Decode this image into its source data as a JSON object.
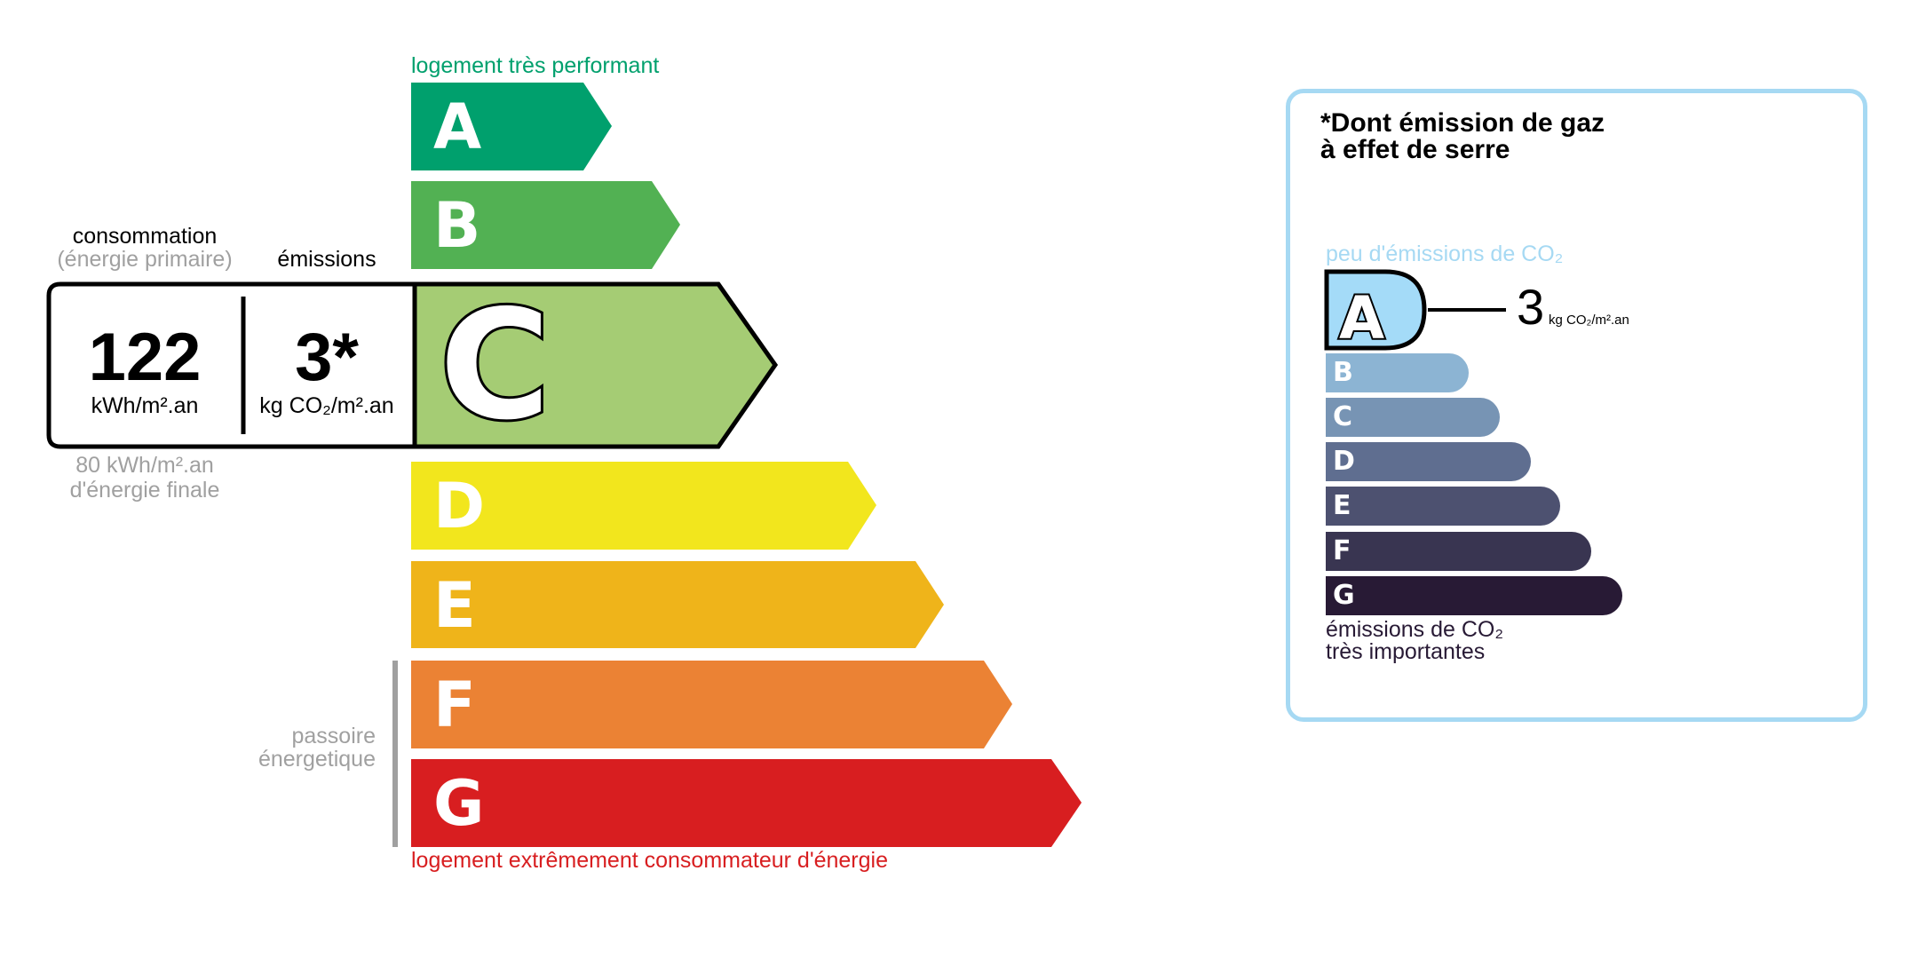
{
  "energy": {
    "top_label": "logement très performant",
    "bottom_label": "logement extrêmement consommateur d'énergie",
    "passoire_label": [
      "passoire",
      "énergetique"
    ],
    "classes": [
      {
        "letter": "A",
        "color": "#00a06d"
      },
      {
        "letter": "B",
        "color": "#52b153"
      },
      {
        "letter": "C",
        "color": "#a5cc74"
      },
      {
        "letter": "D",
        "color": "#f2e61d"
      },
      {
        "letter": "E",
        "color": "#efb41a"
      },
      {
        "letter": "F",
        "color": "#eb8234"
      },
      {
        "letter": "G",
        "color": "#d81e20"
      }
    ],
    "current_class": "C",
    "consumption_heading": "consommation",
    "consumption_subheading": "(énergie primaire)",
    "emissions_heading": "émissions",
    "consumption_value": "122",
    "consumption_unit": "kWh/m².an",
    "emissions_value": "3*",
    "emissions_unit": "kg CO₂/m².an",
    "final_energy_value": "80 kWh/m².an",
    "final_energy_label": "d'énergie finale",
    "top_label_color": "#00a06d",
    "bottom_label_color": "#d81e20"
  },
  "ges": {
    "title_line1": "*Dont émission de gaz",
    "title_line2": "à effet de serre",
    "top_label": "peu d'émissions de CO₂",
    "bottom_label_line1": "émissions de CO₂",
    "bottom_label_line2": "très importantes",
    "current_class": "A",
    "value": "3",
    "unit": "kg CO₂/m².an",
    "border_color": "#a6d9f3",
    "classes": [
      {
        "letter": "A",
        "color": "#a4dbf8"
      },
      {
        "letter": "B",
        "color": "#8cb4d3"
      },
      {
        "letter": "C",
        "color": "#7794b4"
      },
      {
        "letter": "D",
        "color": "#5f6e90"
      },
      {
        "letter": "E",
        "color": "#4d5170"
      },
      {
        "letter": "F",
        "color": "#393551"
      },
      {
        "letter": "G",
        "color": "#281a35"
      }
    ]
  }
}
